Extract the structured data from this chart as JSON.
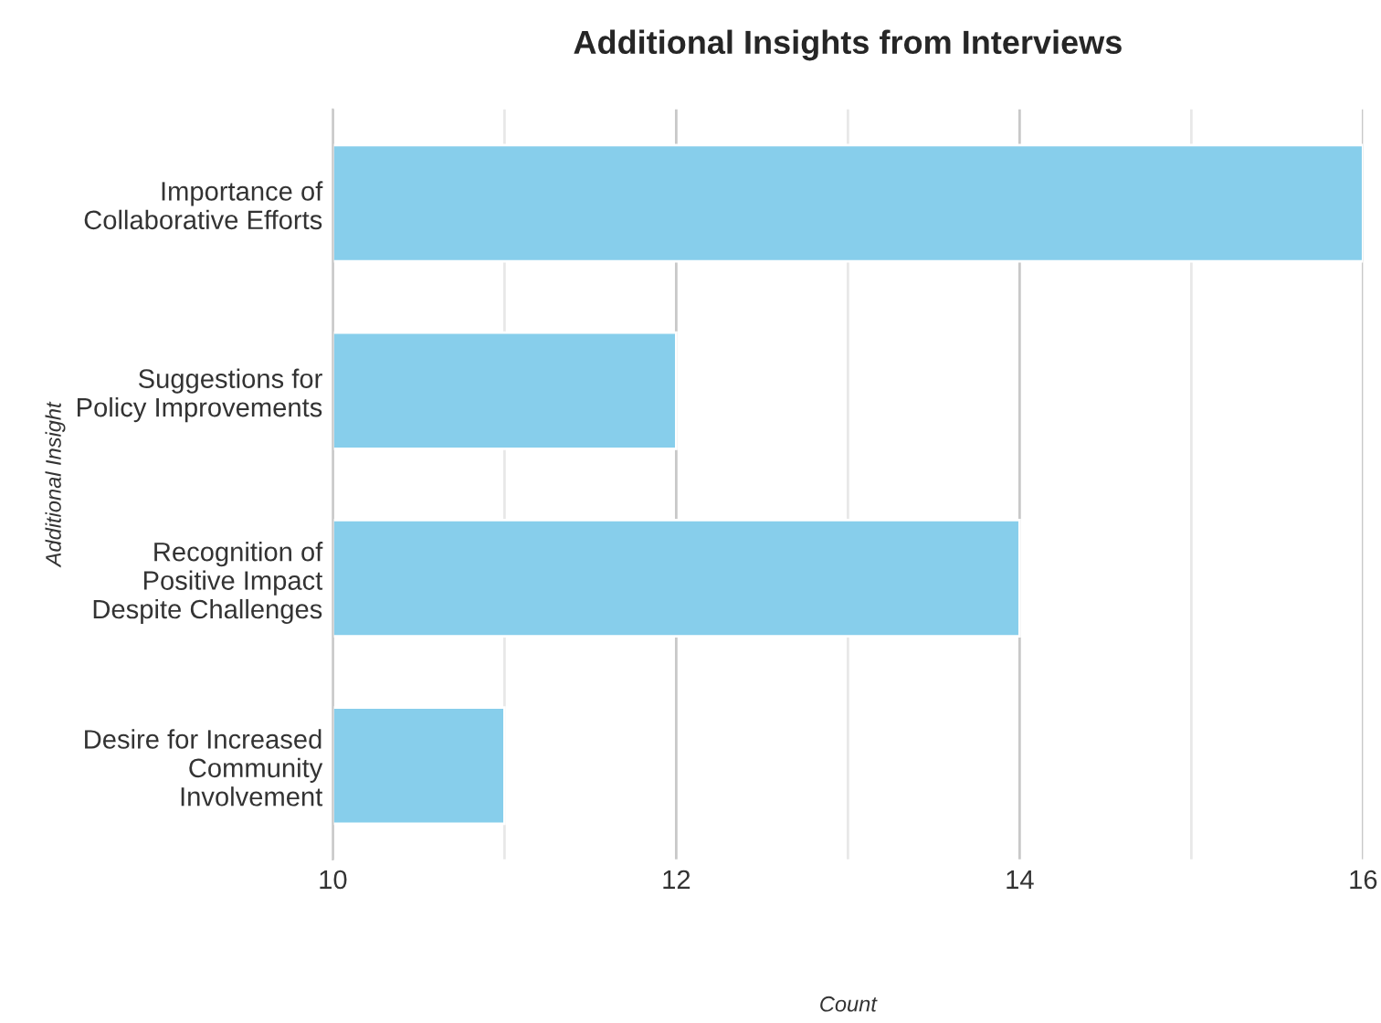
{
  "chart_data": {
    "type": "bar",
    "orientation": "horizontal",
    "title": "Additional Insights from Interviews",
    "xlabel": "Count",
    "ylabel": "Additional Insight",
    "categories": [
      "Importance of\nCollaborative Efforts",
      "Suggestions for\nPolicy Improvements",
      "Recognition of\nPositive Impact\nDespite Challenges",
      "Desire for Increased\nCommunity\nInvolvement"
    ],
    "values": [
      16,
      12,
      14,
      11
    ],
    "color": "#87ceeb",
    "xlim": [
      10,
      16
    ],
    "xticks": [
      10,
      {
        "value": 11,
        "label": null
      },
      12,
      {
        "value": 13,
        "label": null
      },
      14,
      {
        "value": 15,
        "label": null
      },
      16
    ],
    "grid": "x",
    "legend": false
  }
}
